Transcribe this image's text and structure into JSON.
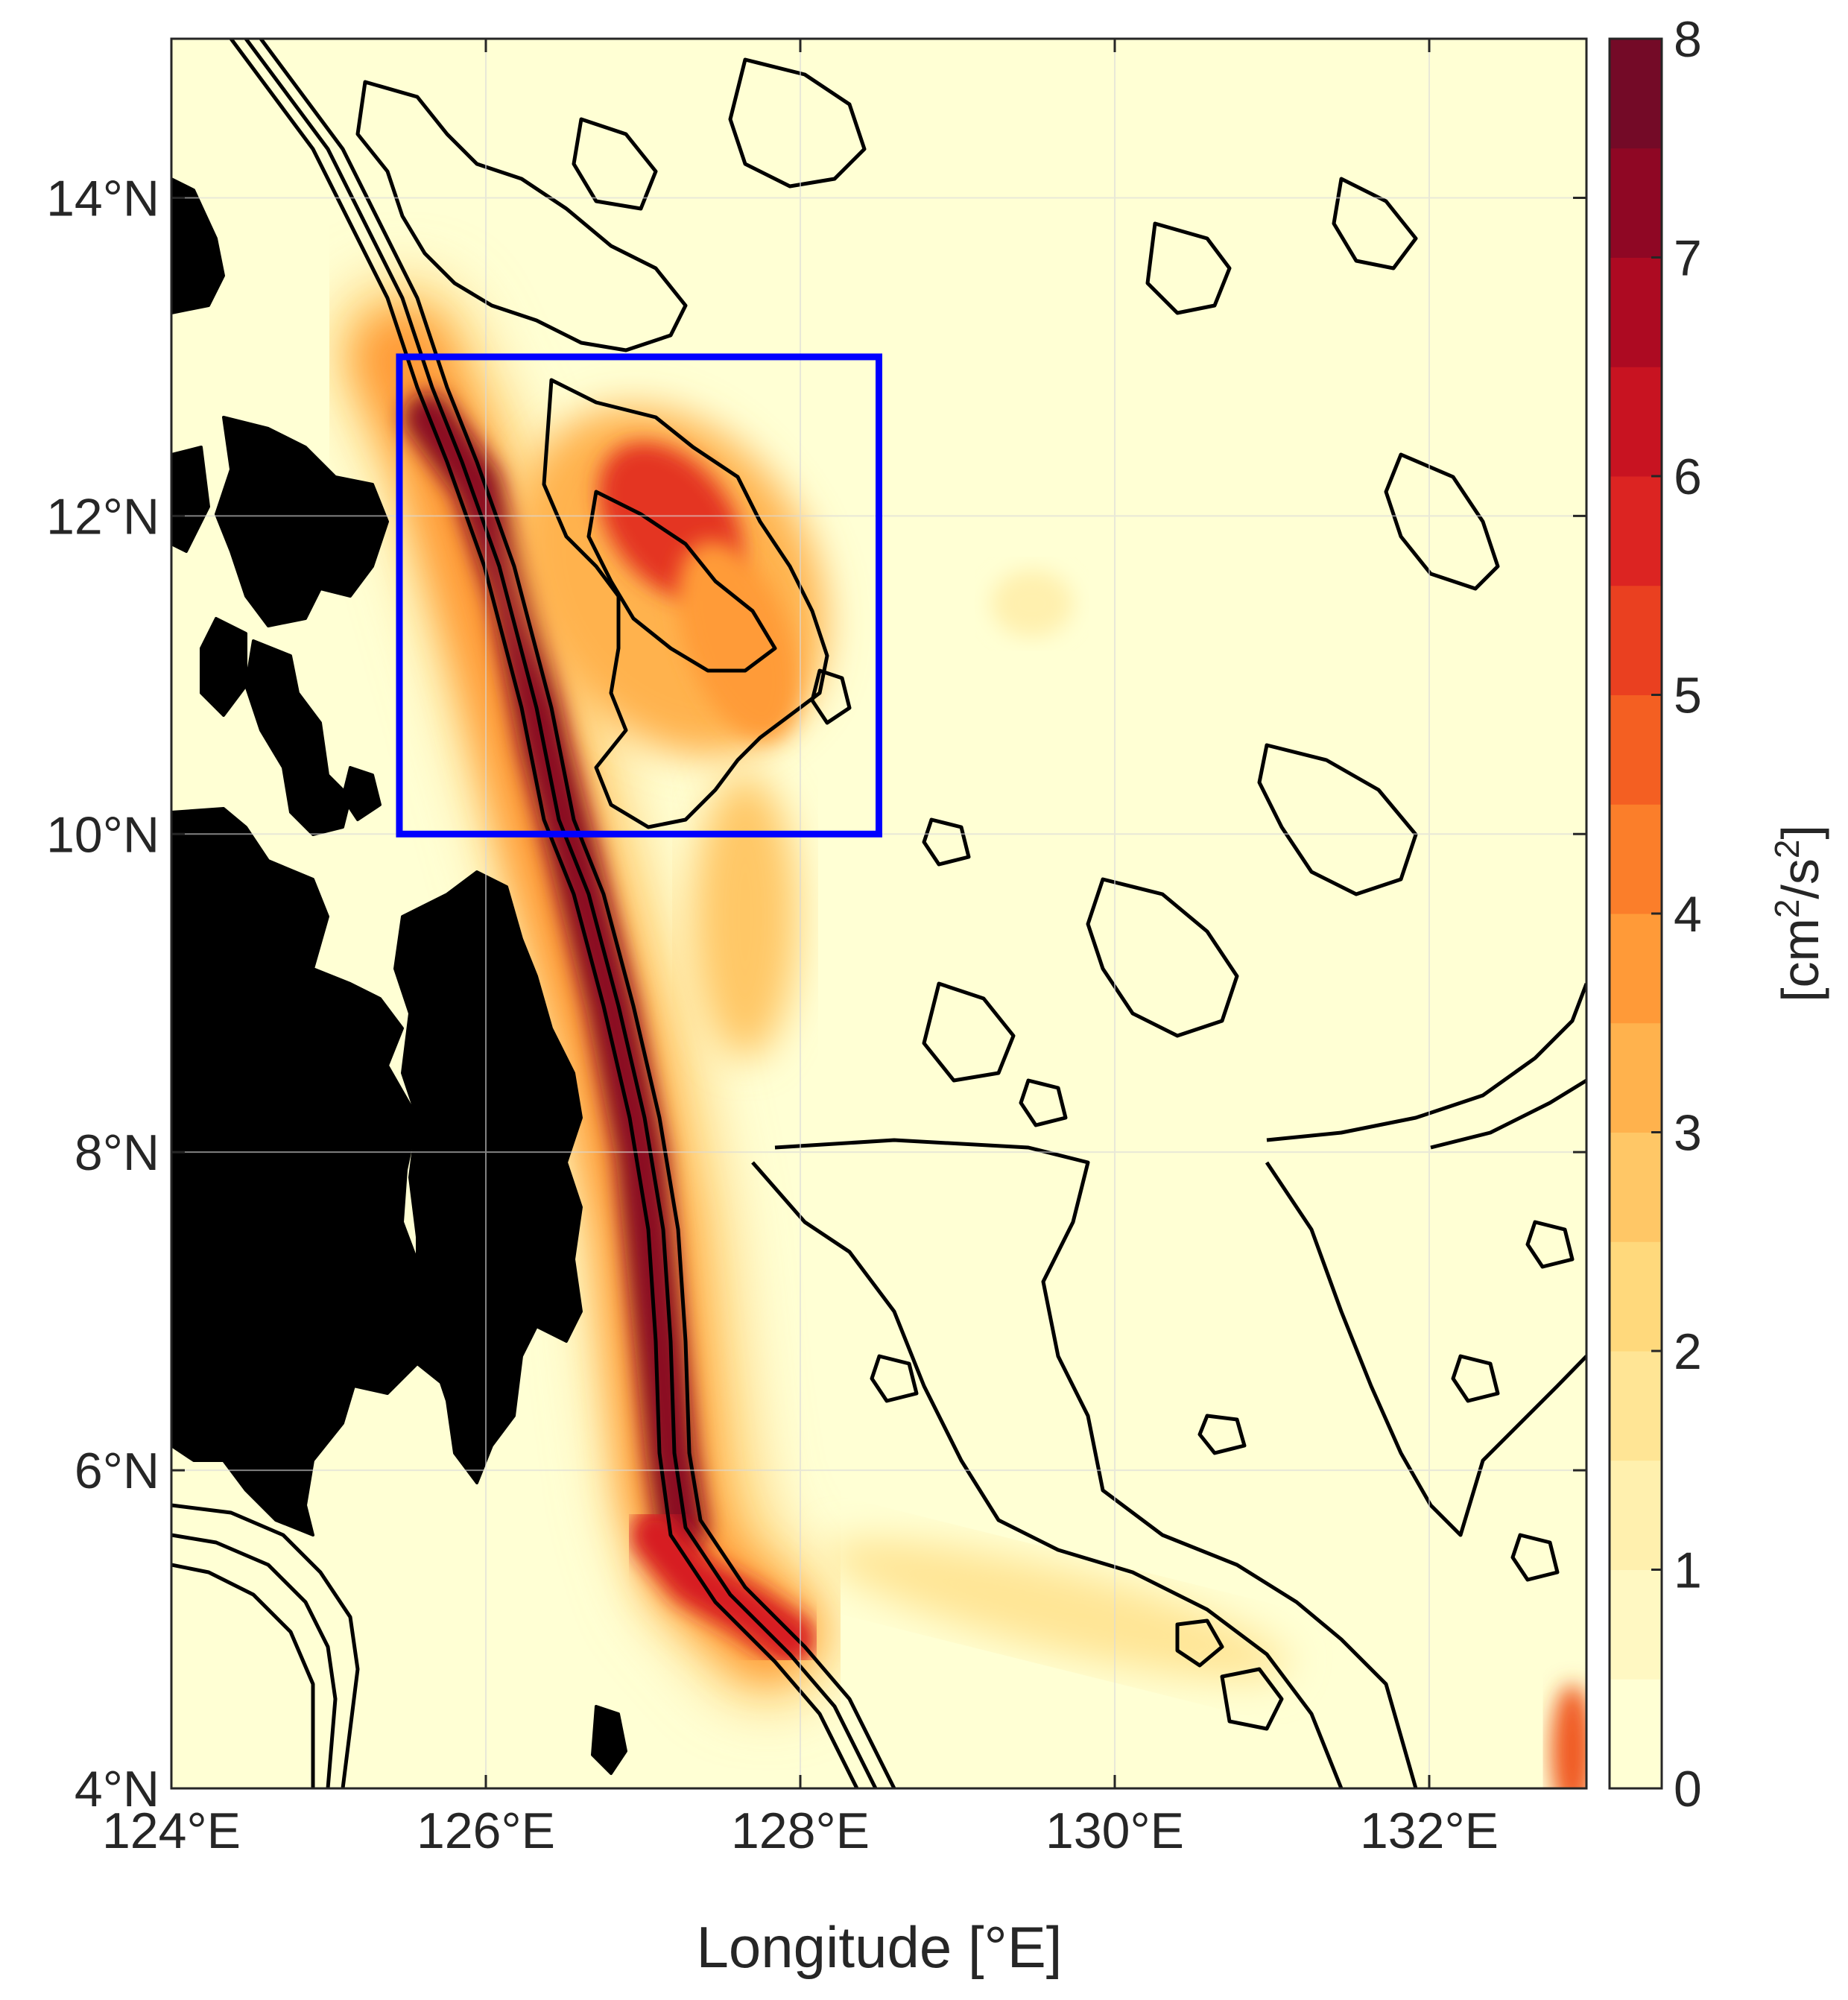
{
  "map": {
    "type": "contour-map",
    "region": "Western Pacific east of the Philippines",
    "x_axis": {
      "label": "Longitude [°E]",
      "range": [
        124,
        133
      ],
      "ticks": [
        124,
        126,
        128,
        130,
        132
      ],
      "tick_labels": [
        "124°E",
        "126°E",
        "128°E",
        "130°E",
        "132°E"
      ]
    },
    "y_axis": {
      "label": "",
      "range": [
        4,
        15
      ],
      "ticks": [
        4,
        6,
        8,
        10,
        12,
        14
      ],
      "tick_labels": [
        "4°N",
        "6°N",
        "8°N",
        "10°N",
        "12°N",
        "14°N"
      ]
    },
    "grid": true,
    "land_color": "#000000",
    "box": {
      "color": "#0000ff",
      "lon_range": [
        125.45,
        128.5
      ],
      "lat_range": [
        10.0,
        13.0
      ]
    },
    "features": [
      {
        "name": "coastal-jet",
        "lon_lat": [
          [
            125.5,
            13.0
          ],
          [
            125.8,
            12.5
          ],
          [
            126.0,
            11.5
          ],
          [
            126.3,
            10.5
          ],
          [
            126.7,
            9.5
          ],
          [
            127.0,
            8.5
          ],
          [
            127.2,
            7.5
          ],
          [
            127.2,
            6.5
          ],
          [
            127.3,
            5.8
          ],
          [
            127.5,
            5.2
          ],
          [
            128.0,
            4.9
          ]
        ],
        "peak": 8
      },
      {
        "name": "offshore-eddy",
        "center": [
          127.2,
          12.1
        ],
        "peak": 6.5
      }
    ]
  },
  "colorbar": {
    "label": "[cm²/s²]",
    "label_base": "[cm",
    "label_sup1": "2",
    "label_mid": "/s",
    "label_sup2": "2",
    "label_end": "]",
    "min": 0,
    "max": 8,
    "ticks": [
      "0",
      "1",
      "2",
      "3",
      "4",
      "5",
      "6",
      "7",
      "8"
    ],
    "levels": [
      "#ffffd4",
      "#fff8c2",
      "#fff0ae",
      "#ffe595",
      "#ffd97c",
      "#ffc766",
      "#ffb24d",
      "#ff9a38",
      "#fb7e2a",
      "#f45f22",
      "#ea4020",
      "#dc2422",
      "#c81321",
      "#ad0a22",
      "#8f0724",
      "#740a27"
    ]
  }
}
